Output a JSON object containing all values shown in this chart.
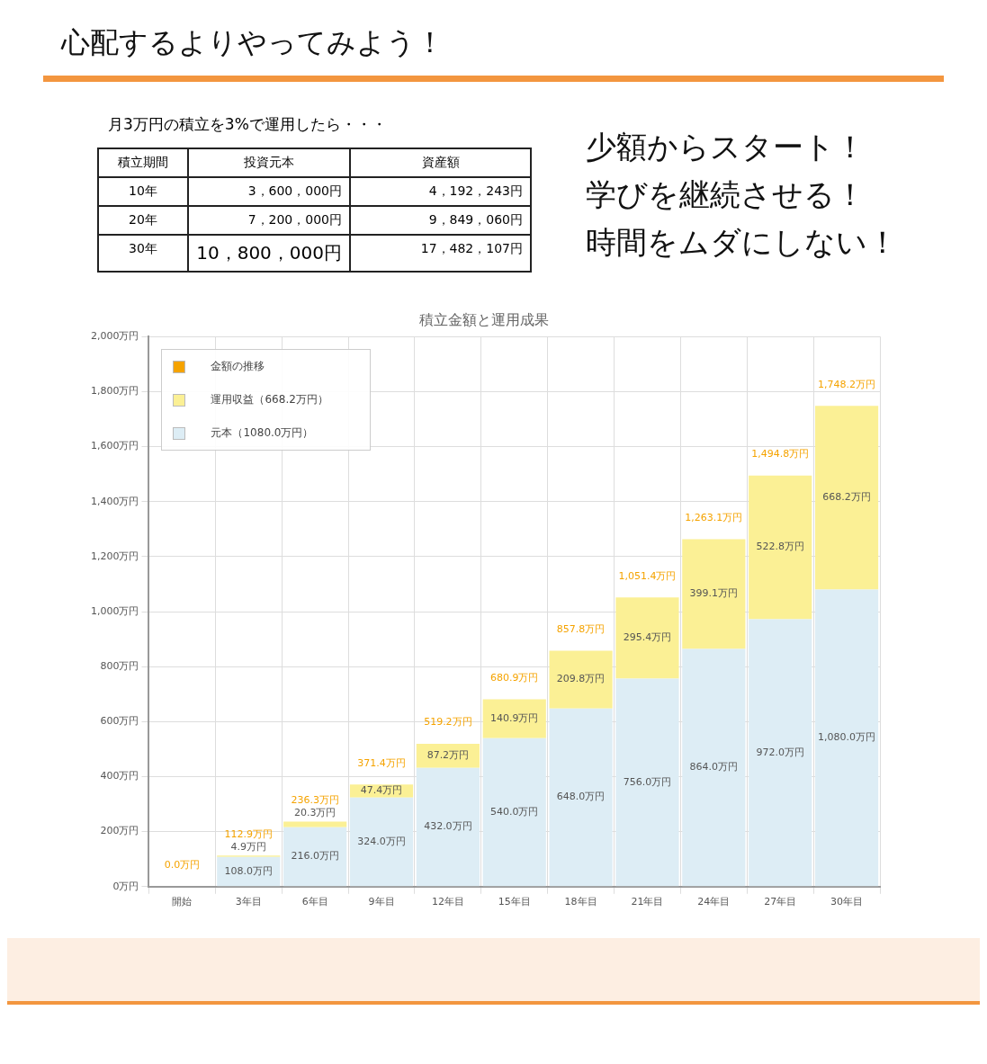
{
  "chart_data": {
    "type": "bar",
    "title": "積立金額と運用成果",
    "stacked": true,
    "grid": true,
    "legend": "top left",
    "categories": [
      "開始",
      "3年目",
      "6年目",
      "9年目",
      "12年目",
      "15年目",
      "18年目",
      "21年目",
      "24年目",
      "27年目",
      "30年目"
    ],
    "series": [
      {
        "name": "元本（1080.0万円）",
        "color": "#ddedf5",
        "values": [
          0,
          108,
          216,
          324,
          432,
          540,
          648,
          756,
          864,
          972,
          1080
        ],
        "value_labels": [
          null,
          "108.0万円",
          "216.0万円",
          "324.0万円",
          "432.0万円",
          "540.0万円",
          "648.0万円",
          "756.0万円",
          "864.0万円",
          "972.0万円",
          "1,080.0万円"
        ]
      },
      {
        "name": "運用収益（668.2万円）",
        "color": "#fbf095",
        "values": [
          0,
          4.9,
          20.3,
          47.4,
          87.2,
          140.9,
          209.8,
          295.4,
          399.1,
          522.8,
          668.2
        ],
        "value_labels": [
          null,
          "4.9万円",
          "20.3万円",
          "47.4万円",
          "87.2万円",
          "140.9万円",
          "209.8万円",
          "295.4万円",
          "399.1万円",
          "522.8万円",
          "668.2万円"
        ]
      },
      {
        "name": "金額の推移",
        "type": "line",
        "color": "#f5a300",
        "values": [
          null,
          null,
          null,
          null,
          null,
          null,
          null,
          null,
          null,
          null,
          null
        ]
      }
    ],
    "totals": [
      "0.0万円",
      "112.9万円",
      "236.3万円",
      "371.4万円",
      "519.2万円",
      "680.9万円",
      "857.8万円",
      "1,051.4万円",
      "1,263.1万円",
      "1,494.8万円",
      "1,748.2万円"
    ],
    "ylim": [
      0,
      2000
    ],
    "yticks": [
      {
        "value": 0,
        "label": "0万円"
      },
      {
        "value": 200,
        "label": "200万円"
      },
      {
        "value": 400,
        "label": "400万円"
      },
      {
        "value": 600,
        "label": "600万円"
      },
      {
        "value": 800,
        "label": "800万円"
      },
      {
        "value": 1000,
        "label": "1,000万円"
      },
      {
        "value": 1200,
        "label": "1,200万円"
      },
      {
        "value": 1400,
        "label": "1,400万円"
      },
      {
        "value": 1600,
        "label": "1,600万円"
      },
      {
        "value": 1800,
        "label": "1,800万円"
      },
      {
        "value": 2000,
        "label": "2,000万円"
      }
    ],
    "annotations": [
      "心配するよりやってみよう！",
      "月3万円の積立を3%で運用したら・・・",
      "積立期間",
      "投資元本",
      "資産額",
      "10年",
      "3，600，000円",
      "4，192，243円",
      "20年",
      "7，200，000円",
      "9，849，060円",
      "30年",
      "10，800，000円",
      "17，482，107円",
      "少額からスタート！",
      "学びを継続させる！",
      "時間をムダにしない！"
    ]
  }
}
